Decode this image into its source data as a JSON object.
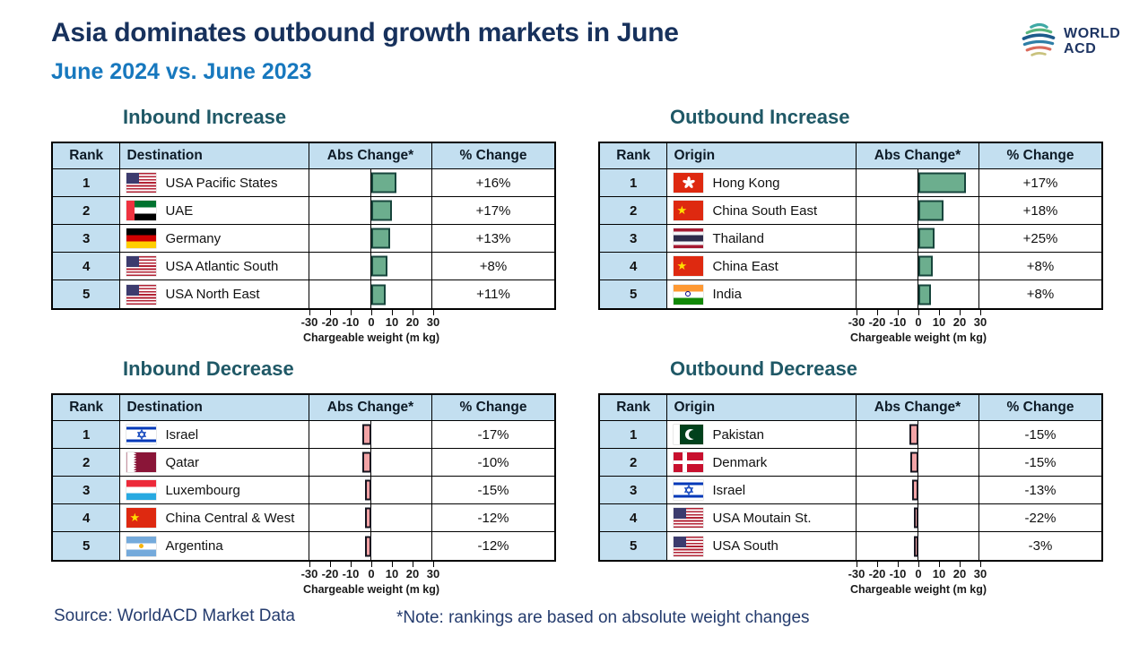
{
  "header": {
    "title": "Asia dominates outbound growth markets in June",
    "subtitle": "June 2024 vs. June 2023",
    "logo": {
      "line1": "WORLD",
      "line2": "ACD"
    }
  },
  "axis": {
    "ticks": [
      -30,
      -20,
      -10,
      0,
      10,
      20,
      30
    ],
    "min": -30,
    "max": 30,
    "label": "Chargeable weight (m kg)"
  },
  "icons": {
    "star": "★"
  },
  "colors": {
    "increase_bar": "#6cae8e",
    "increase_border": "#17453c",
    "decrease_bar": "#f2a3a6",
    "decrease_border": "#15151f",
    "header_bg": "#c3dff0",
    "title": "#17315c",
    "subtitle": "#1778be",
    "section_title": "#1f5866"
  },
  "tables": [
    {
      "id": "inbound-increase",
      "title": "Inbound Increase",
      "columns": [
        "Rank",
        "Destination",
        "Abs Change*",
        "% Change"
      ],
      "direction": "increase",
      "rows": [
        {
          "rank": "1",
          "flag": "usa",
          "name": "USA Pacific States",
          "abs": 12,
          "pct": "+16%"
        },
        {
          "rank": "2",
          "flag": "uae",
          "name": "UAE",
          "abs": 10,
          "pct": "+17%"
        },
        {
          "rank": "3",
          "flag": "germany",
          "name": "Germany",
          "abs": 9,
          "pct": "+13%"
        },
        {
          "rank": "4",
          "flag": "usa",
          "name": "USA Atlantic South",
          "abs": 8,
          "pct": "+8%"
        },
        {
          "rank": "5",
          "flag": "usa",
          "name": "USA North East",
          "abs": 7,
          "pct": "+11%"
        }
      ]
    },
    {
      "id": "outbound-increase",
      "title": "Outbound Increase",
      "columns": [
        "Rank",
        "Origin",
        "Abs Change*",
        "% Change"
      ],
      "direction": "increase",
      "rows": [
        {
          "rank": "1",
          "flag": "hongkong",
          "name": "Hong Kong",
          "abs": 23,
          "pct": "+17%"
        },
        {
          "rank": "2",
          "flag": "china",
          "name": "China South East",
          "abs": 12,
          "pct": "+18%"
        },
        {
          "rank": "3",
          "flag": "thailand",
          "name": "Thailand",
          "abs": 8,
          "pct": "+25%"
        },
        {
          "rank": "4",
          "flag": "china",
          "name": "China East",
          "abs": 7,
          "pct": "+8%"
        },
        {
          "rank": "5",
          "flag": "india",
          "name": "India",
          "abs": 6,
          "pct": "+8%"
        }
      ]
    },
    {
      "id": "inbound-decrease",
      "title": "Inbound Decrease",
      "columns": [
        "Rank",
        "Destination",
        "Abs Change*",
        "% Change"
      ],
      "direction": "decrease",
      "rows": [
        {
          "rank": "1",
          "flag": "israel",
          "name": "Israel",
          "abs": -4.5,
          "pct": "-17%"
        },
        {
          "rank": "2",
          "flag": "qatar",
          "name": "Qatar",
          "abs": -4.5,
          "pct": "-10%"
        },
        {
          "rank": "3",
          "flag": "luxembourg",
          "name": "Luxembourg",
          "abs": -3,
          "pct": "-15%"
        },
        {
          "rank": "4",
          "flag": "china",
          "name": "China Central & West",
          "abs": -3,
          "pct": "-12%"
        },
        {
          "rank": "5",
          "flag": "argentina",
          "name": "Argentina",
          "abs": -3,
          "pct": "-12%"
        }
      ]
    },
    {
      "id": "outbound-decrease",
      "title": "Outbound Decrease",
      "columns": [
        "Rank",
        "Origin",
        "Abs Change*",
        "% Change"
      ],
      "direction": "decrease",
      "rows": [
        {
          "rank": "1",
          "flag": "pakistan",
          "name": "Pakistan",
          "abs": -4.5,
          "pct": "-15%"
        },
        {
          "rank": "2",
          "flag": "denmark",
          "name": "Denmark",
          "abs": -4,
          "pct": "-15%"
        },
        {
          "rank": "3",
          "flag": "israel",
          "name": "Israel",
          "abs": -3,
          "pct": "-13%"
        },
        {
          "rank": "4",
          "flag": "usa",
          "name": "USA Moutain St.",
          "abs": -2,
          "pct": "-22%"
        },
        {
          "rank": "5",
          "flag": "usa",
          "name": "USA South",
          "abs": -2,
          "pct": "-3%"
        }
      ]
    }
  ],
  "chart_data": [
    {
      "type": "bar",
      "orientation": "horizontal",
      "title": "Inbound Increase",
      "categories": [
        "USA Pacific States",
        "UAE",
        "Germany",
        "USA Atlantic South",
        "USA North East"
      ],
      "values": [
        12,
        10,
        9,
        8,
        7
      ],
      "pct_change_labels": [
        "+16%",
        "+17%",
        "+13%",
        "+8%",
        "+11%"
      ],
      "xlabel": "Chargeable weight (m kg)",
      "ylabel": "",
      "xlim": [
        -30,
        30
      ],
      "bar_color": "#6cae8e",
      "grid": false,
      "legend": "none"
    },
    {
      "type": "bar",
      "orientation": "horizontal",
      "title": "Outbound Increase",
      "categories": [
        "Hong Kong",
        "China South East",
        "Thailand",
        "China East",
        "India"
      ],
      "values": [
        23,
        12,
        8,
        7,
        6
      ],
      "pct_change_labels": [
        "+17%",
        "+18%",
        "+25%",
        "+8%",
        "+8%"
      ],
      "xlabel": "Chargeable weight (m kg)",
      "ylabel": "",
      "xlim": [
        -30,
        30
      ],
      "bar_color": "#6cae8e",
      "grid": false,
      "legend": "none"
    },
    {
      "type": "bar",
      "orientation": "horizontal",
      "title": "Inbound Decrease",
      "categories": [
        "Israel",
        "Qatar",
        "Luxembourg",
        "China Central & West",
        "Argentina"
      ],
      "values": [
        -4.5,
        -4.5,
        -3,
        -3,
        -3
      ],
      "pct_change_labels": [
        "-17%",
        "-10%",
        "-15%",
        "-12%",
        "-12%"
      ],
      "xlabel": "Chargeable weight (m kg)",
      "ylabel": "",
      "xlim": [
        -30,
        30
      ],
      "bar_color": "#f2a3a6",
      "grid": false,
      "legend": "none"
    },
    {
      "type": "bar",
      "orientation": "horizontal",
      "title": "Outbound Decrease",
      "categories": [
        "Pakistan",
        "Denmark",
        "Israel",
        "USA Moutain St.",
        "USA South"
      ],
      "values": [
        -4.5,
        -4,
        -3,
        -2,
        -2
      ],
      "pct_change_labels": [
        "-15%",
        "-15%",
        "-13%",
        "-22%",
        "-3%"
      ],
      "xlabel": "Chargeable weight (m kg)",
      "ylabel": "",
      "xlim": [
        -30,
        30
      ],
      "bar_color": "#f2a3a6",
      "grid": false,
      "legend": "none"
    }
  ],
  "footer": {
    "source": "Source: WorldACD Market Data",
    "note": "*Note: rankings are based on absolute weight changes"
  }
}
